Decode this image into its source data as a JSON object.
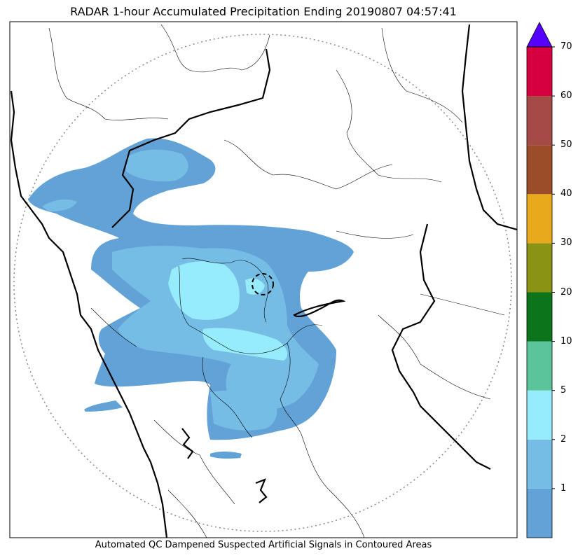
{
  "title": "RADAR 1-hour Accumulated Precipitation Ending 20190807 04:57:41",
  "caption": "Automated QC Dampened Suspected Artificial Signals in Contoured Areas",
  "colorbar": {
    "ticks": [
      "1",
      "2",
      "5",
      "10",
      "20",
      "30",
      "40",
      "50",
      "60",
      "70"
    ],
    "levels": [
      {
        "color": "#62a2d6"
      },
      {
        "color": "#76bde6"
      },
      {
        "color": "#97ecfb"
      },
      {
        "color": "#5cc49b"
      },
      {
        "color": "#0c751b"
      },
      {
        "color": "#8b9314"
      },
      {
        "color": "#e8aa1c"
      },
      {
        "color": "#9b4c29"
      },
      {
        "color": "#a64a47"
      },
      {
        "color": "#d6003f"
      }
    ],
    "extend_color": "#5500ff"
  },
  "map_colors": {
    "light": "#62a2d6",
    "medium": "#76bde6",
    "bright": "#97ecfb",
    "boundary": "#000000",
    "range_ring": "#888888"
  }
}
